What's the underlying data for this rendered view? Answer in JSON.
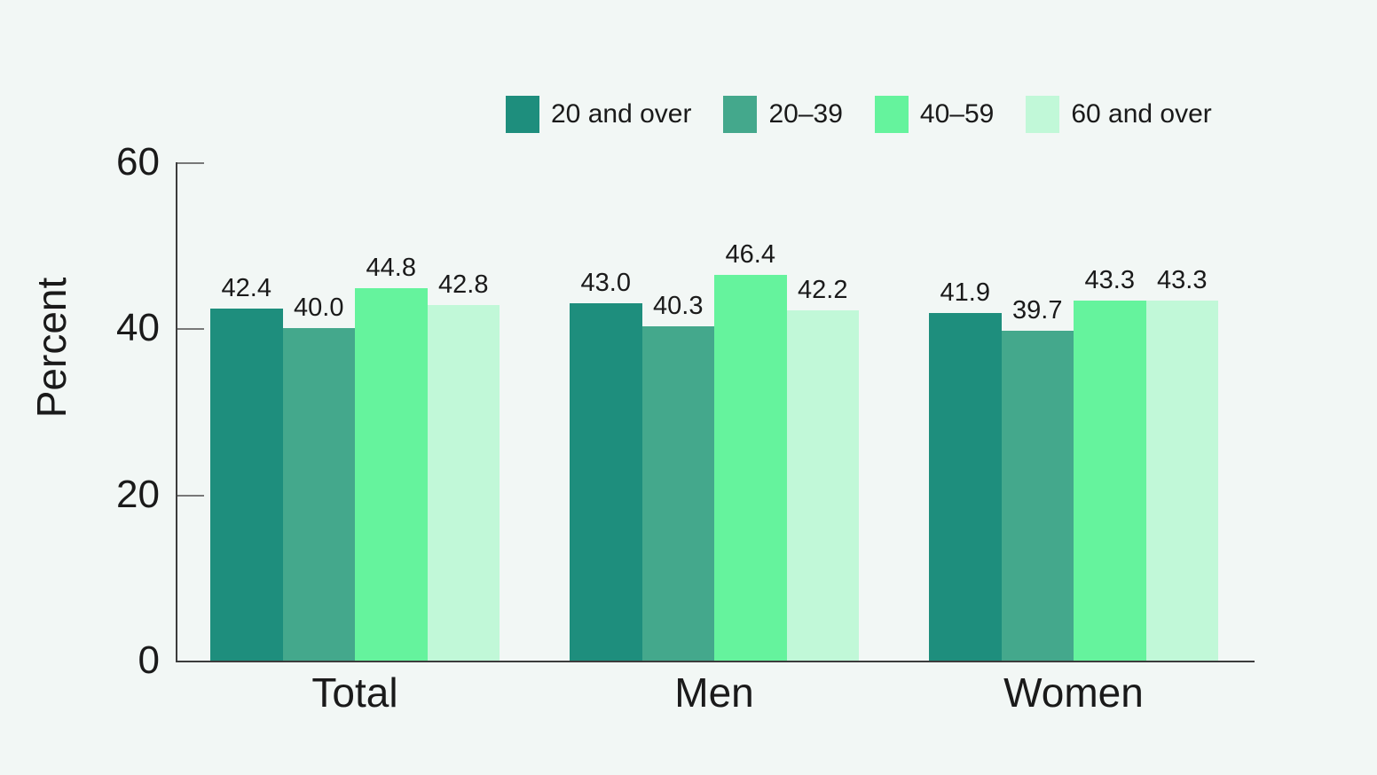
{
  "chart_data": {
    "type": "bar",
    "title": "",
    "xlabel": "",
    "ylabel": "Percent",
    "categories": [
      "Total",
      "Men",
      "Women"
    ],
    "series": [
      {
        "name": "20 and over",
        "color": "#1e8e7d",
        "values": [
          42.4,
          43.0,
          41.9
        ]
      },
      {
        "name": "20–39",
        "color": "#44a88c",
        "values": [
          40.0,
          40.3,
          39.7
        ]
      },
      {
        "name": "40–59",
        "color": "#65f39d",
        "values": [
          44.8,
          46.4,
          43.3
        ]
      },
      {
        "name": "60 and over",
        "color": "#c1f8d8",
        "values": [
          42.8,
          42.2,
          43.3
        ]
      }
    ],
    "ylim": [
      0,
      60
    ],
    "yticks": [
      0,
      20,
      40,
      60
    ],
    "value_labels": true,
    "value_label_format": "0.1f",
    "legend_position": "top",
    "grid": false
  },
  "colors": {
    "background": "#f2f7f5",
    "axis": "#3c3c3c",
    "tick": "#787878",
    "text": "#1a1a1a"
  }
}
